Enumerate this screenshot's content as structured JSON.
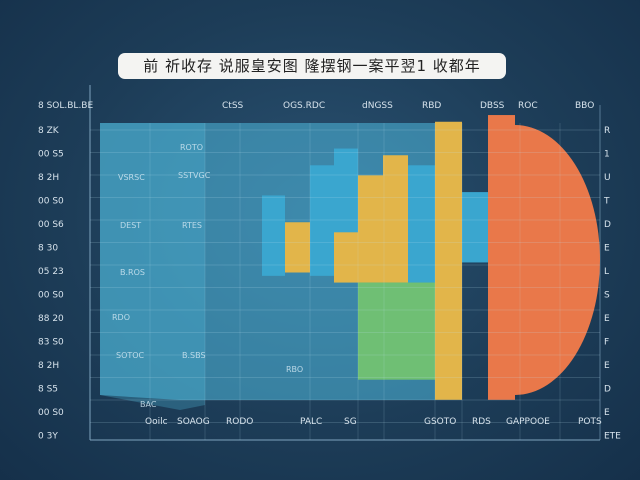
{
  "title": "前 祈收存 说服皇安图  隆摆钢一案平翌1 收都年",
  "colors": {
    "blue": "#3aa6cf",
    "yellow": "#e2b54a",
    "green": "#6fbf74",
    "orange": "#e9784a",
    "panel": "#4fb8dc"
  },
  "chart_data": {
    "type": "bar",
    "title": "前 祈收存 说服皇安图  隆摆钢一案平翌1 收都年",
    "top_labels": [
      "8 SOL.BL.BE",
      "CtSS",
      "OGS.RDC",
      "dNGSS",
      "RBD",
      "DBSS",
      "ROC",
      "BBO"
    ],
    "y_tick_labels": [
      "8 ZK",
      "00 S5",
      "8 2H",
      "00 S0",
      "00 S6",
      "8 30",
      "05 23",
      "00 S0",
      "88 20",
      "83 S0",
      "8 2H",
      "8 S5",
      "00 S0",
      "0 3Y"
    ],
    "right_tick_labels": [
      "R",
      "1",
      "U",
      "T",
      "D",
      "E",
      "L",
      "S",
      "E",
      "F",
      "E",
      "D",
      "E",
      "ETE"
    ],
    "x_tick_labels": [
      "Ooilc",
      "SOAOG",
      "RODO",
      "PALC",
      "SG",
      "GSOTO",
      "RDS",
      "GAPPOOE",
      "POTS"
    ],
    "inner_labels": [
      "ROTO",
      "VSRSC",
      "SSTVGC",
      "DEST",
      "RTES",
      "B.ROS",
      "RDO",
      "SOTOC",
      "B.SBS",
      "RBO",
      "BAC"
    ],
    "ylim": [
      0,
      100
    ],
    "bars": [
      {
        "color": "blue",
        "base": 49,
        "top": 73
      },
      {
        "color": "yellow",
        "base": 50,
        "top": 65
      },
      {
        "color": "blue",
        "base": 49,
        "top": 82
      },
      {
        "color": "blue",
        "base": 47,
        "top": 87
      },
      {
        "color": "yellow",
        "base": 47,
        "top": 62
      },
      {
        "color": "yellow",
        "base": 47,
        "top": 79
      },
      {
        "color": "yellow",
        "base": 47,
        "top": 85
      },
      {
        "color": "blue",
        "base": 47,
        "top": 82
      },
      {
        "color": "green",
        "base": 18,
        "top": 47
      },
      {
        "color": "yellow",
        "base": 12,
        "top": 95
      },
      {
        "color": "blue",
        "base": 53,
        "top": 74
      },
      {
        "color": "orange",
        "base": 12,
        "top": 97
      }
    ]
  }
}
